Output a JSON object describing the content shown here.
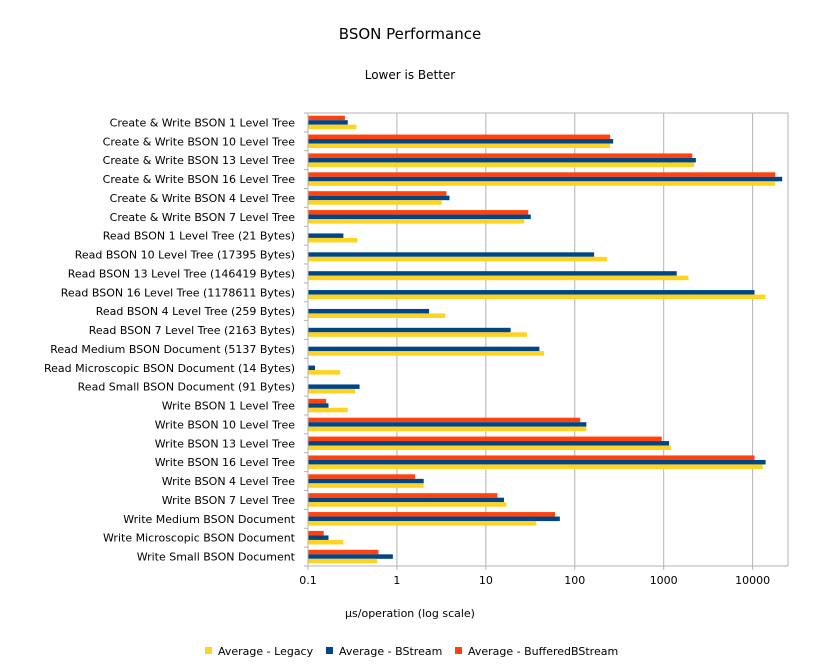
{
  "chart_data": {
    "type": "bar",
    "orientation": "horizontal",
    "title": "BSON Performance",
    "subtitle": "Lower is Better",
    "xlabel": "µs/operation (log scale)",
    "xscale": "log",
    "xlim": [
      0.1,
      25000
    ],
    "xticks": [
      "0.1",
      "1",
      "10",
      "100",
      "1000",
      "10000"
    ],
    "grid": true,
    "legend_position": "bottom",
    "categories": [
      "Create & Write BSON 1 Level Tree",
      "Create & Write BSON 10 Level Tree",
      "Create & Write BSON 13 Level Tree",
      "Create & Write BSON 16 Level Tree",
      "Create & Write BSON 4 Level Tree",
      "Create & Write BSON 7 Level Tree",
      "Read BSON 1 Level Tree (21 Bytes)",
      "Read BSON 10 Level Tree (17395 Bytes)",
      "Read BSON 13 Level Tree (146419 Bytes)",
      "Read BSON 16 Level Tree (1178611 Bytes)",
      "Read BSON 4 Level Tree (259 Bytes)",
      "Read BSON 7 Level Tree (2163 Bytes)",
      "Read Medium BSON Document (5137 Bytes)",
      "Read Microscopic BSON Document (14 Bytes)",
      "Read Small BSON Document (91 Bytes)",
      "Write BSON 1 Level Tree",
      "Write BSON 10 Level Tree",
      "Write BSON 13 Level Tree",
      "Write BSON 16 Level Tree",
      "Write BSON 4 Level Tree",
      "Write BSON 7 Level Tree",
      "Write Medium BSON Document",
      "Write Microscopic BSON Document",
      "Write Small BSON Document"
    ],
    "series": [
      {
        "name": "Average -  Legacy",
        "color": "#ffd320",
        "values": [
          0.35,
          250,
          2200,
          18000,
          3.2,
          27,
          0.36,
          230,
          1900,
          14000,
          3.5,
          29,
          45,
          0.23,
          0.34,
          0.28,
          135,
          1200,
          13000,
          2.0,
          17,
          37,
          0.25,
          0.6
        ]
      },
      {
        "name": "Average -  BStream",
        "color": "#004586",
        "values": [
          0.28,
          270,
          2300,
          21500,
          3.9,
          32,
          0.25,
          165,
          1400,
          10500,
          2.3,
          19,
          40,
          0.12,
          0.38,
          0.17,
          135,
          1150,
          14000,
          2.0,
          16,
          68,
          0.17,
          0.9
        ]
      },
      {
        "name": "Average -  BufferedBStream",
        "color": "#ff420e",
        "values": [
          0.26,
          250,
          2100,
          18000,
          3.6,
          30,
          null,
          null,
          null,
          null,
          null,
          null,
          null,
          null,
          null,
          0.16,
          115,
          950,
          10500,
          1.6,
          13.5,
          60,
          0.15,
          0.62
        ]
      }
    ]
  }
}
